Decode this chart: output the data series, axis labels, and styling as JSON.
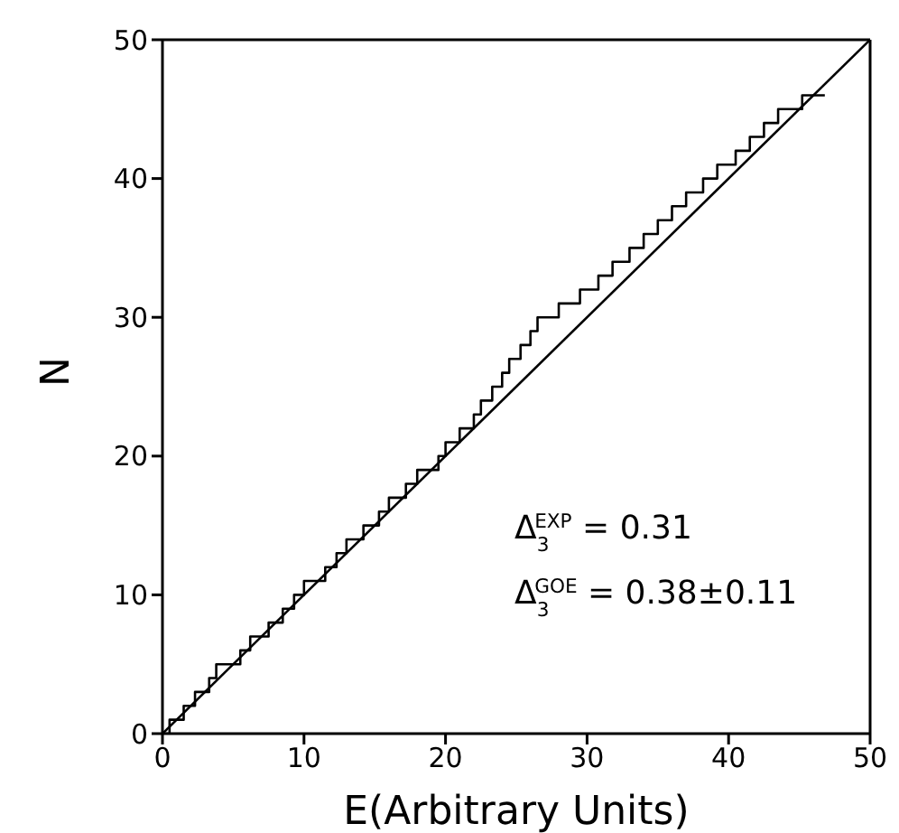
{
  "chart_data": {
    "type": "step",
    "xlabel": "E(Arbitrary Units)",
    "ylabel": "N",
    "xlim": [
      0,
      50
    ],
    "ylim": [
      0,
      50
    ],
    "xticks": [
      0,
      10,
      20,
      30,
      40,
      50
    ],
    "yticks": [
      0,
      10,
      20,
      30,
      40,
      50
    ],
    "marker": "none",
    "line_style": "solid",
    "series": [
      {
        "type": "step",
        "color": "#000000",
        "x": [
          0,
          0.5,
          1.5,
          2.3,
          3.3,
          3.8,
          5.5,
          6.2,
          7.5,
          8.5,
          9.3,
          10.0,
          11.5,
          12.3,
          13.0,
          14.2,
          15.3,
          16.0,
          17.2,
          18.0,
          19.5,
          20.0,
          21.0,
          22.0,
          22.5,
          23.3,
          24.0,
          24.5,
          25.3,
          26.0,
          26.5,
          28.0,
          29.5,
          30.8,
          31.8,
          33.0,
          34.0,
          35.0,
          36.0,
          37.0,
          38.2,
          39.2,
          40.5,
          41.5,
          42.5,
          43.5,
          45.2,
          46.8
        ],
        "values": [
          0,
          1,
          2,
          3,
          4,
          5,
          6,
          7,
          8,
          9,
          10,
          11,
          12,
          13,
          14,
          15,
          16,
          17,
          18,
          19,
          20,
          21,
          22,
          23,
          24,
          25,
          26,
          27,
          28,
          29,
          30,
          31,
          32,
          33,
          34,
          35,
          36,
          37,
          38,
          39,
          40,
          41,
          42,
          43,
          44,
          45,
          46,
          46
        ]
      },
      {
        "type": "line",
        "color": "#000000",
        "x": [
          0,
          50
        ],
        "values": [
          0,
          50
        ]
      }
    ],
    "annotations": [
      {
        "text": "Δ$_{3}$$^{EXP}$ = 0.31"
      },
      {
        "text": "Δ$_{3}$$^{GOE}$ = 0.38±0.11"
      }
    ]
  }
}
